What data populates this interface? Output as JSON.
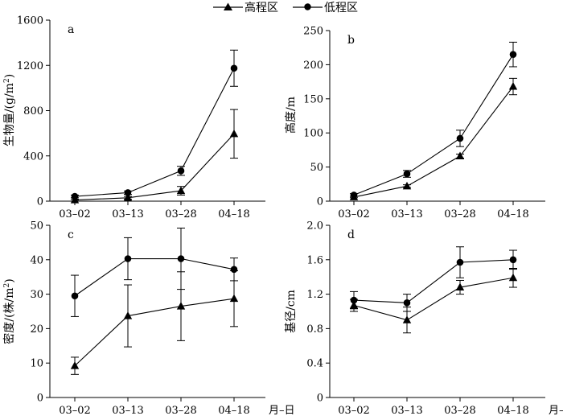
{
  "legend": {
    "high": "高程区",
    "low": "低程区"
  },
  "chart_data": [
    {
      "type": "line",
      "panel_label": "a",
      "ylabel_main": "生物量/(g/m",
      "ylabel_sup": "2",
      "ylabel_tail": ")",
      "xlabel": "",
      "categories": [
        "03–02",
        "03–13",
        "03–28",
        "04–18"
      ],
      "ylim": [
        0,
        1600
      ],
      "yticks": [
        0,
        400,
        800,
        1200,
        1600
      ],
      "ytick_labels": [
        "0",
        "400",
        "800",
        "1200",
        "1600"
      ],
      "series": [
        {
          "name": "高程区",
          "marker": "triangle",
          "values": [
            10,
            30,
            92,
            595
          ],
          "err": [
            8,
            12,
            38,
            215
          ]
        },
        {
          "name": "低程区",
          "marker": "circle",
          "values": [
            42,
            75,
            268,
            1175
          ],
          "err": [
            12,
            15,
            40,
            160
          ]
        }
      ]
    },
    {
      "type": "line",
      "panel_label": "b",
      "ylabel_main": "高度/m",
      "ylabel_sup": "",
      "ylabel_tail": "",
      "xlabel": "",
      "categories": [
        "03–02",
        "03–13",
        "03–28",
        "04–18"
      ],
      "ylim": [
        0,
        250
      ],
      "yticks": [
        0,
        50,
        100,
        150,
        200,
        250
      ],
      "ytick_labels": [
        "0",
        "50",
        "100",
        "150",
        "200",
        "250"
      ],
      "series": [
        {
          "name": "高程区",
          "marker": "triangle",
          "values": [
            6,
            22,
            66,
            168
          ],
          "err": [
            1,
            2,
            3,
            12
          ]
        },
        {
          "name": "低程区",
          "marker": "circle",
          "values": [
            9,
            40,
            92,
            215
          ],
          "err": [
            2,
            5,
            12,
            18
          ]
        }
      ]
    },
    {
      "type": "line",
      "panel_label": "c",
      "ylabel_main": "密度/(株/m",
      "ylabel_sup": "2",
      "ylabel_tail": ")",
      "xlabel": "月–日",
      "categories": [
        "03–02",
        "03–13",
        "03–28",
        "04–18"
      ],
      "ylim": [
        0,
        50
      ],
      "yticks": [
        0,
        10,
        20,
        30,
        40,
        50
      ],
      "ytick_labels": [
        "0",
        "10",
        "20",
        "30",
        "40",
        "50"
      ],
      "series": [
        {
          "name": "高程区",
          "marker": "triangle",
          "values": [
            9.2,
            23.7,
            26.5,
            28.7
          ],
          "err": [
            2.5,
            9,
            10,
            8.1
          ]
        },
        {
          "name": "低程区",
          "marker": "circle",
          "values": [
            29.5,
            40.3,
            40.3,
            37.2
          ],
          "err": [
            6,
            6.1,
            8.9,
            3.3
          ]
        }
      ]
    },
    {
      "type": "line",
      "panel_label": "d",
      "ylabel_main": "基径/cm",
      "ylabel_sup": "",
      "ylabel_tail": "",
      "xlabel": "月–日",
      "categories": [
        "03–02",
        "03–13",
        "03–28",
        "04–18"
      ],
      "ylim": [
        0,
        2.0
      ],
      "yticks": [
        0,
        0.4,
        0.8,
        1.2,
        1.6,
        2.0
      ],
      "ytick_labels": [
        "0",
        "0.4",
        "0.8",
        "1.2",
        "1.6",
        "2.0"
      ],
      "series": [
        {
          "name": "高程区",
          "marker": "triangle",
          "values": [
            1.07,
            0.9,
            1.28,
            1.39
          ],
          "err": [
            0.07,
            0.15,
            0.08,
            0.11
          ]
        },
        {
          "name": "低程区",
          "marker": "circle",
          "values": [
            1.13,
            1.1,
            1.57,
            1.6
          ],
          "err": [
            0.1,
            0.1,
            0.18,
            0.11
          ]
        }
      ]
    }
  ]
}
